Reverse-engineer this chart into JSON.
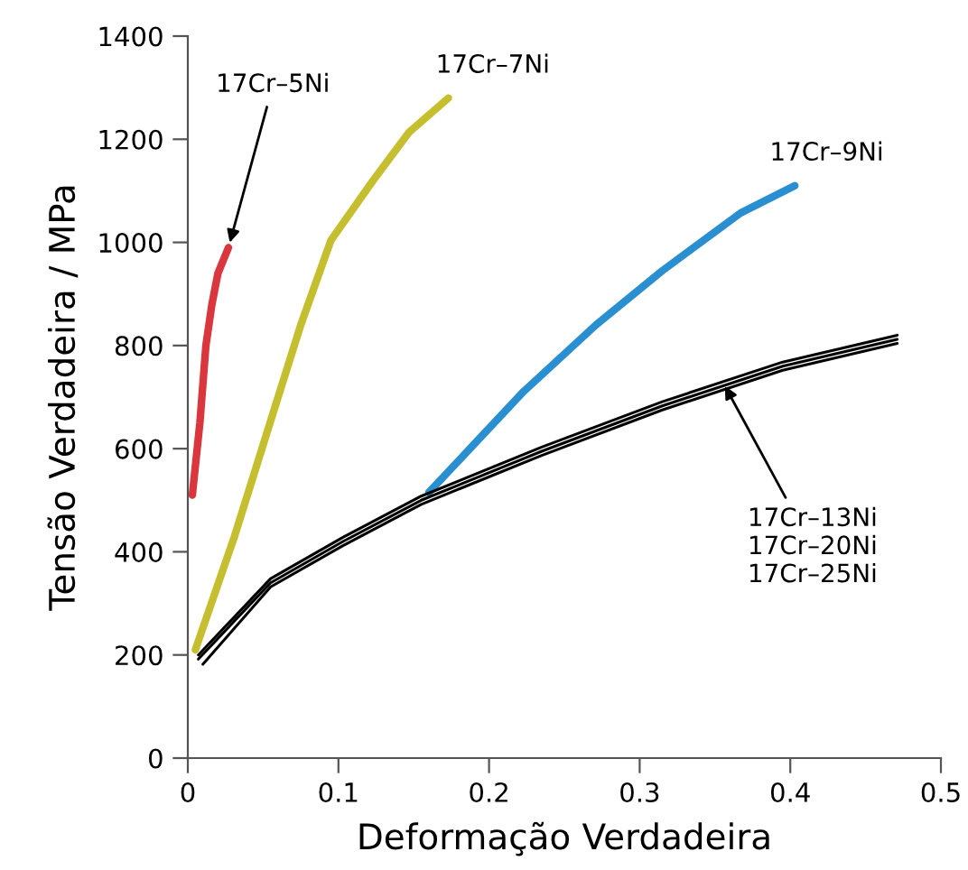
{
  "chart_data": {
    "type": "line",
    "xlabel": "Deformação Verdadeira",
    "ylabel": "Tensão Verdadeira / MPa",
    "xlim": [
      0,
      0.5
    ],
    "xticks": [
      0,
      {
        "value": 0.1,
        "label": "0.1"
      },
      {
        "value": 0.2,
        "label": "0.2"
      },
      {
        "value": 0.3,
        "label": "0.3"
      },
      {
        "value": 0.4,
        "label": "0.4"
      },
      {
        "value": 0.5,
        "label": "0.5"
      }
    ],
    "ylim": [
      0,
      1400
    ],
    "yticks": [
      0,
      200,
      400,
      600,
      800,
      1000,
      1200,
      1400
    ],
    "grid": false,
    "marker": "none",
    "line_style": "solid",
    "series": [
      {
        "color": "#d9363e",
        "x": [
          0.003,
          0.008,
          0.012,
          0.016,
          0.02,
          0.027
        ],
        "values": [
          510,
          650,
          800,
          880,
          940,
          990
        ]
      },
      {
        "color": "#c5bf30",
        "x": [
          0.005,
          0.031,
          0.055,
          0.075,
          0.095,
          0.123,
          0.147,
          0.173
        ],
        "values": [
          210,
          430,
          654,
          840,
          1004,
          1120,
          1214,
          1280
        ]
      },
      {
        "color": "#2a8fd0",
        "x": [
          0.16,
          0.223,
          0.271,
          0.315,
          0.367,
          0.403
        ],
        "values": [
          515,
          711,
          840,
          945,
          1057,
          1110
        ]
      },
      {
        "color": "#000000",
        "x": [
          0.007,
          0.055,
          0.103,
          0.155,
          0.235,
          0.315,
          0.395,
          0.471
        ],
        "values": [
          200,
          348,
          428,
          508,
          603,
          691,
          768,
          820
        ]
      },
      {
        "color": "#000000",
        "x": [
          0.007,
          0.055,
          0.103,
          0.155,
          0.235,
          0.315,
          0.395,
          0.471
        ],
        "values": [
          192,
          340,
          420,
          500,
          595,
          683,
          760,
          812
        ]
      },
      {
        "color": "#000000",
        "x": [
          0.01,
          0.055,
          0.103,
          0.155,
          0.235,
          0.315,
          0.395,
          0.471
        ],
        "values": [
          182,
          332,
          412,
          492,
          587,
          675,
          752,
          804
        ]
      }
    ],
    "annotations": [
      {
        "text": "17Cr–5Ni",
        "x": 0.027,
        "y": 990
      },
      {
        "text": "17Cr–7Ni",
        "x": 0.173,
        "y": 1280
      },
      {
        "text": "17Cr–9Ni",
        "x": 0.403,
        "y": 1110
      },
      {
        "text": "17Cr–13Ni\n17Cr–20Ni\n17Cr–25Ni",
        "x": 0.355,
        "y": 730
      }
    ]
  }
}
